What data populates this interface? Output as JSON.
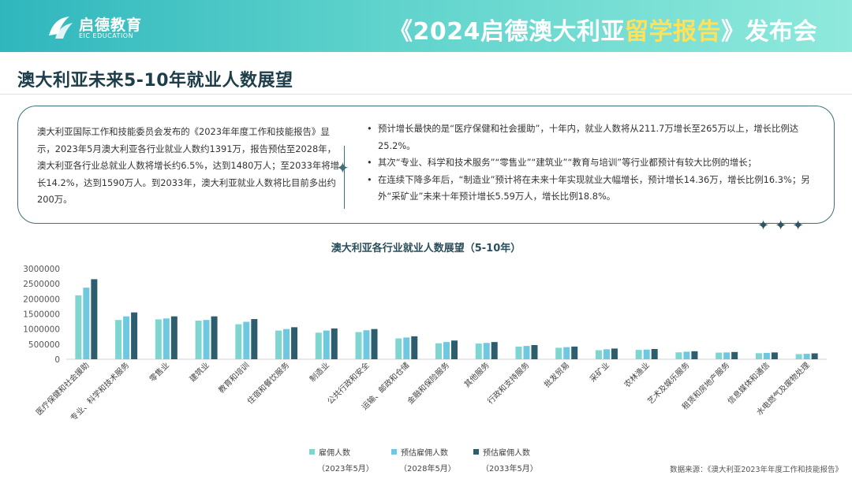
{
  "header": {
    "logo_cn": "启德教育",
    "logo_en": "EIC EDUCATION",
    "title_part1": "《2024启德澳大利亚",
    "title_highlight": "留学报告",
    "title_part2": "》发布会"
  },
  "page_title": "澳大利亚未来5-10年就业人数展望",
  "info": {
    "left_text": "澳大利亚国际工作和技能委员会发布的《2023年年度工作和技能报告》显示，2023年5月澳大利亚各行业就业人数约1391万，报告预估至2028年，澳大利亚各行业总就业人数将增长约6.5%，达到1480万人；至2033年将增长14.2%，达到1590万人。到2033年，澳大利亚就业人数将比目前多出约200万。",
    "bullets": [
      "预计增长最快的是“医疗保健和社会援助”，十年内，就业人数将从211.7万增长至265万以上，增长比例达25.2%。",
      "其次“专业、科学和技术服务”“零售业”“建筑业”“教育与培训”等行业都预计有较大比例的增长；",
      "在连续下降多年后，“制造业”预计将在未来十年实现就业大幅增长，预计增长14.36万，增长比例16.3%；另外“采矿业”未来十年预计增长5.59万人，增长比例18.8%。"
    ],
    "stars": "✦✦✦"
  },
  "chart_data": {
    "type": "bar",
    "title": "澳大利亚各行业就业人数展望（5-10年）",
    "ylim": [
      0,
      3000000
    ],
    "yticks": [
      0,
      500000,
      1000000,
      1500000,
      2000000,
      2500000,
      3000000
    ],
    "ytick_labels": [
      "0",
      "500000",
      "1000000",
      "1500000",
      "2000000",
      "2500000",
      "3000000"
    ],
    "grid": false,
    "legend_position": "bottom",
    "categories": [
      "医疗保健和社会援助",
      "专业、科学和技术服务",
      "零售业",
      "建筑业",
      "教育和培训",
      "住宿和餐饮服务",
      "制造业",
      "公共行政和安全",
      "运输、邮政和仓储",
      "金融和保险服务",
      "其他服务",
      "行政和支持服务",
      "批发贸易",
      "采矿业",
      "农林渔业",
      "艺术及娱乐服务",
      "租赁和房地产服务",
      "信息媒体和通信",
      "水电燃气及废物处理"
    ],
    "series": [
      {
        "name": "雇佣人数",
        "sub": "（2023年5月）",
        "color": "#7fd6d0",
        "values": [
          2117000,
          1300000,
          1320000,
          1280000,
          1160000,
          950000,
          880000,
          900000,
          690000,
          530000,
          520000,
          420000,
          380000,
          300000,
          310000,
          230000,
          220000,
          200000,
          170000
        ]
      },
      {
        "name": "预估雇佣人数",
        "sub": "（2028年5月）",
        "color": "#6ec8e0",
        "values": [
          2370000,
          1420000,
          1350000,
          1300000,
          1240000,
          1000000,
          950000,
          960000,
          720000,
          570000,
          540000,
          440000,
          400000,
          330000,
          320000,
          250000,
          225000,
          210000,
          180000
        ]
      },
      {
        "name": "预估雇佣人数",
        "sub": "（2033年5月）",
        "color": "#2e5d6e",
        "values": [
          2650000,
          1550000,
          1420000,
          1420000,
          1330000,
          1060000,
          1020000,
          1000000,
          760000,
          620000,
          570000,
          470000,
          420000,
          355000,
          340000,
          265000,
          240000,
          225000,
          195000
        ]
      }
    ]
  },
  "source": "数据来源：《澳大利亚2023年年度工作和技能报告》"
}
